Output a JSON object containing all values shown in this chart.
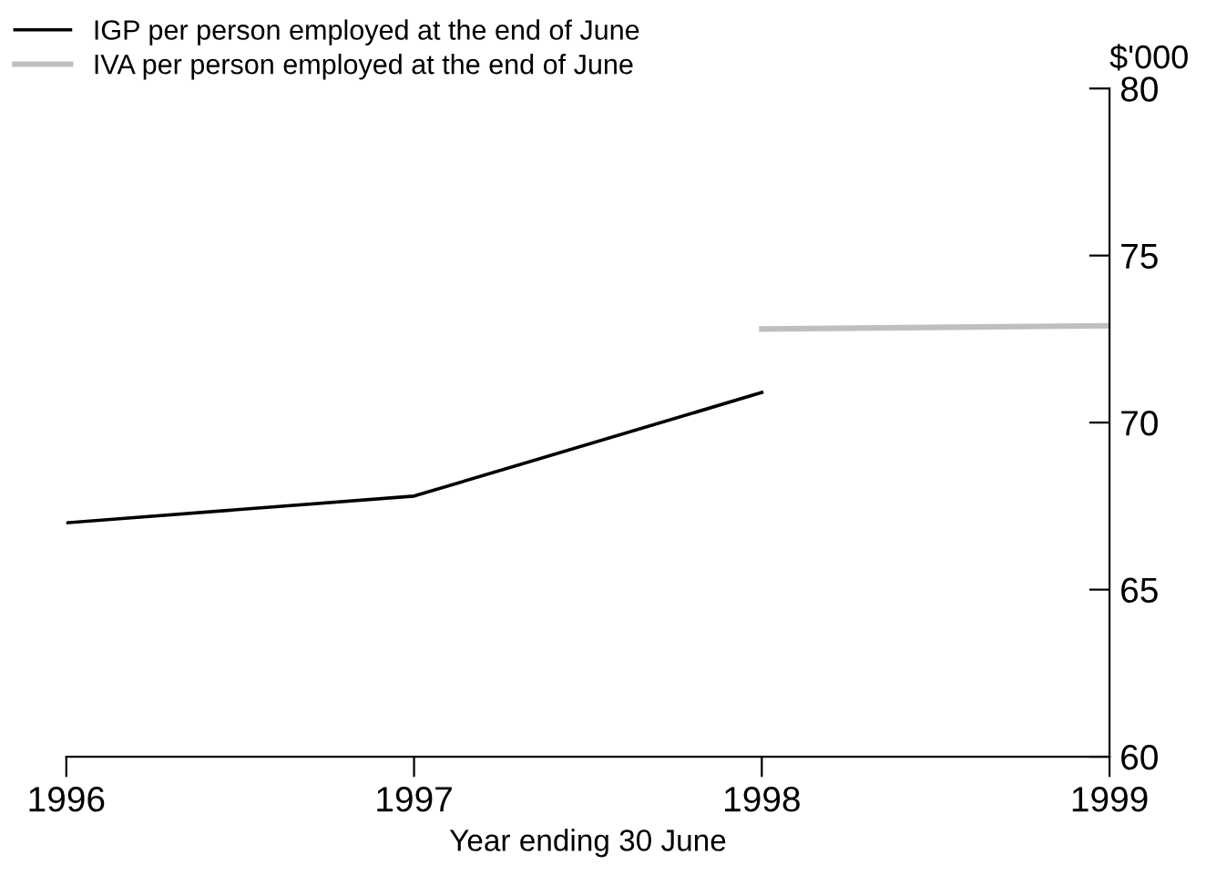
{
  "chart_data": {
    "type": "line",
    "xlabel": "Year ending 30 June",
    "ylabel": "$'000",
    "categories": [
      "1996",
      "1997",
      "1998",
      "1999"
    ],
    "series": [
      {
        "name": "IGP per person employed at the end of June",
        "color": "#000000",
        "values": [
          67.0,
          67.8,
          70.9,
          null
        ]
      },
      {
        "name": "IVA per person employed at the end of June",
        "color": "#bfbfbf",
        "values": [
          null,
          null,
          72.8,
          72.9
        ]
      }
    ],
    "ylim": [
      60,
      80
    ],
    "yticks": [
      60,
      65,
      70,
      75,
      80
    ],
    "grid": false,
    "legend": "top left",
    "marker": "none",
    "line_style": "solid"
  }
}
